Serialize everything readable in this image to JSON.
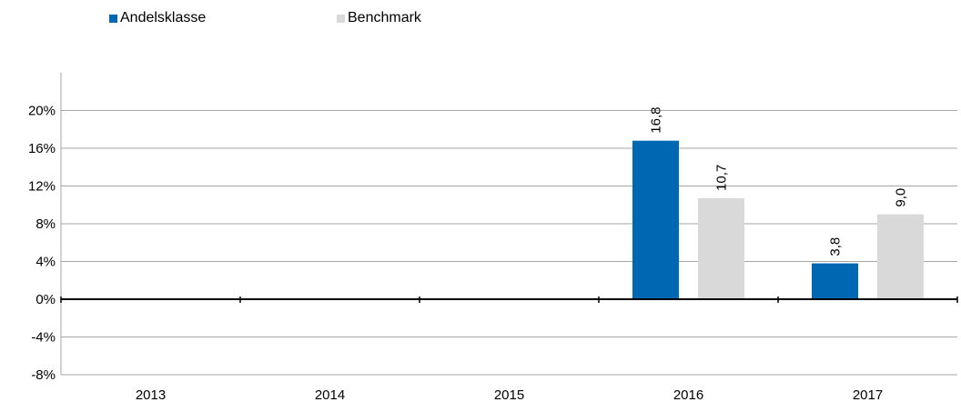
{
  "chart_data": {
    "type": "bar",
    "categories": [
      "2013",
      "2014",
      "2015",
      "2016",
      "2017"
    ],
    "series": [
      {
        "name": "Andelsklasse",
        "color": "#0068b3",
        "values": [
          null,
          null,
          null,
          16.8,
          3.8
        ],
        "labels": [
          "",
          "",
          "",
          "16,8",
          "3,8"
        ]
      },
      {
        "name": "Benchmark",
        "color": "#d9d9d9",
        "values": [
          null,
          null,
          null,
          10.7,
          9.0
        ],
        "labels": [
          "",
          "",
          "",
          "10,7",
          "9,0"
        ]
      }
    ],
    "ylim": [
      -8,
      24
    ],
    "yticks": [
      -8,
      -4,
      0,
      4,
      8,
      12,
      16,
      20
    ],
    "ytick_labels": [
      "-8%",
      "-4%",
      "0%",
      "4%",
      "8%",
      "12%",
      "16%",
      "20%"
    ],
    "grid": true,
    "legend_position": "top-left",
    "title": "",
    "xlabel": "",
    "ylabel": ""
  }
}
